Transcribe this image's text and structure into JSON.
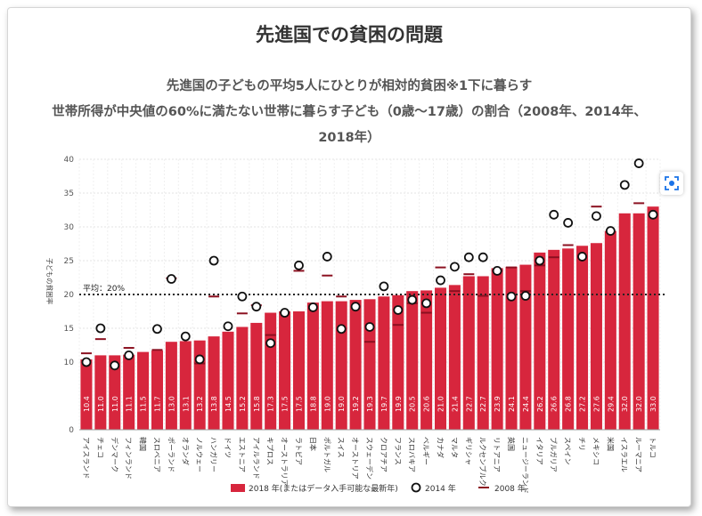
{
  "header": {
    "title": "先進国での貧困の問題",
    "subtitle1": "先進国の子どもの平均5人にひとりが相対的貧困※1下に暮らす",
    "subtitle2": "世帯所得が中央値の60%に満たない世帯に暮らす子ども（0歳〜17歳）の割合（2008年、2014年、",
    "subtitle3": "2018年）"
  },
  "colors": {
    "bar": "#d7263d",
    "line": "#8b1020",
    "avg": "#222222"
  },
  "icons": {
    "lens": "lens-scan-icon"
  },
  "chart_data": {
    "type": "bar",
    "ylabel": "子どもの貧困率",
    "ylim": [
      0,
      40
    ],
    "yticks": [
      0,
      10,
      15,
      20,
      25,
      30,
      35,
      40
    ],
    "average": {
      "value": 20,
      "label": "平均：20%"
    },
    "categories": [
      "アイスランド",
      "チェコ",
      "デンマーク",
      "フィンランド",
      "韓国",
      "スロベニア",
      "ポーランド",
      "オランダ",
      "ノルウェー",
      "ハンガリー",
      "ドイツ",
      "エストニア",
      "アイルランド",
      "キプロス",
      "オーストラリア",
      "ラトビア",
      "日本",
      "ポルトガル",
      "スイス",
      "オーストリア",
      "スウェーデン",
      "クロアチア",
      "フランス",
      "スロバキア",
      "ベルギー",
      "カナダ",
      "マルタ",
      "ギリシャ",
      "ルクセンブルク",
      "リトアニア",
      "英国",
      "ニュージーランド",
      "イタリア",
      "ブルガリア",
      "スペイン",
      "チリ",
      "メキシコ",
      "米国",
      "イスラエル",
      "ルーマニア",
      "トルコ"
    ],
    "series": [
      {
        "name": "2018 年(またはデータ入手可能な最新年)",
        "values": [
          10.4,
          11.0,
          11.0,
          11.1,
          11.5,
          11.7,
          13.0,
          13.1,
          13.2,
          13.8,
          14.5,
          15.2,
          15.8,
          17.3,
          17.5,
          17.5,
          18.8,
          19.0,
          19.0,
          19.2,
          19.3,
          19.7,
          19.9,
          20.5,
          20.6,
          21.0,
          21.4,
          22.7,
          22.7,
          23.9,
          24.1,
          24.4,
          26.2,
          26.6,
          26.8,
          27.2,
          27.6,
          29.4,
          32.0,
          32.0,
          33.0
        ]
      },
      {
        "name": "2014 年",
        "values": [
          10.0,
          15.0,
          9.5,
          11.0,
          null,
          14.9,
          22.3,
          13.8,
          10.4,
          25.0,
          15.3,
          19.7,
          18.2,
          12.8,
          17.3,
          24.3,
          18.1,
          25.6,
          14.9,
          18.2,
          15.2,
          21.2,
          17.7,
          19.2,
          18.7,
          22.1,
          24.1,
          25.5,
          25.5,
          23.5,
          19.7,
          19.8,
          25.0,
          31.8,
          30.6,
          25.6,
          31.6,
          29.4,
          36.2,
          39.4,
          31.8
        ]
      },
      {
        "name": "2008 年",
        "values": [
          11.3,
          13.4,
          null,
          12.1,
          null,
          11.8,
          22.4,
          null,
          9.8,
          19.7,
          null,
          17.2,
          18.4,
          14.0,
          null,
          23.5,
          null,
          22.8,
          19.7,
          null,
          13.0,
          null,
          15.5,
          18.7,
          17.3,
          24.0,
          20.5,
          23.0,
          19.8,
          23.5,
          24.0,
          20.5,
          24.3,
          25.5,
          27.3,
          null,
          33.0,
          null,
          null,
          33.5,
          null
        ]
      }
    ],
    "legend_position": "bottom"
  }
}
